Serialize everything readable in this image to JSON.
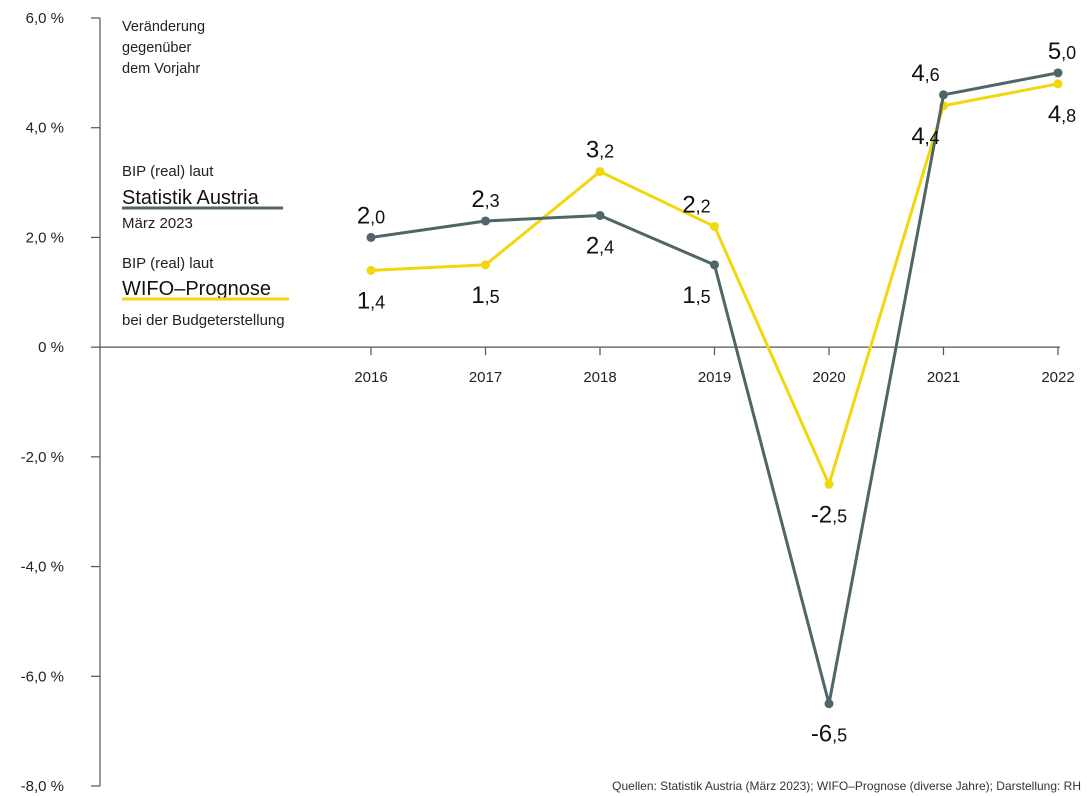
{
  "chart_data": {
    "type": "line",
    "categories": [
      "2016",
      "2017",
      "2018",
      "2019",
      "2020",
      "2021",
      "2022"
    ],
    "ylim": [
      -8.0,
      6.0
    ],
    "yticks": [
      6.0,
      4.0,
      2.0,
      0,
      -2.0,
      -4.0,
      -6.0,
      -8.0
    ],
    "ytick_labels": [
      "6,0 %",
      "4,0 %",
      "2,0 %",
      "0 %",
      "-2,0 %",
      "-4,0 %",
      "-6,0 %",
      "-8,0 %"
    ],
    "ylabel_lines": [
      "Veränderung",
      "gegenüber",
      "dem Vorjahr"
    ],
    "grid": false,
    "series": [
      {
        "key": "statistik",
        "legend_top": "BIP (real) laut",
        "name": "Statistik Austria",
        "legend_bottom": "März 2023",
        "color": "#4f6568",
        "values": [
          2.0,
          2.3,
          2.4,
          1.5,
          -6.5,
          4.6,
          5.0
        ],
        "labels": [
          {
            "int": "2",
            "dec": ",0"
          },
          {
            "int": "2",
            "dec": ",3"
          },
          {
            "int": "2",
            "dec": ",4"
          },
          {
            "int": "1",
            "dec": ",5"
          },
          {
            "int": "-6",
            "dec": ",5"
          },
          {
            "int": "4",
            "dec": ",6"
          },
          {
            "int": "5",
            "dec": ",0"
          }
        ]
      },
      {
        "key": "wifo",
        "legend_top": "BIP (real) laut",
        "name": "WIFO–Prognose",
        "legend_bottom": "bei der Budgeterstellung",
        "color": "#f2d70c",
        "values": [
          1.4,
          1.5,
          3.2,
          2.2,
          -2.5,
          4.4,
          4.8
        ],
        "labels": [
          {
            "int": "1",
            "dec": ",4"
          },
          {
            "int": "1",
            "dec": ",5"
          },
          {
            "int": "3",
            "dec": ",2"
          },
          {
            "int": "2",
            "dec": ",2"
          },
          {
            "int": "-2",
            "dec": ",5"
          },
          {
            "int": "4",
            "dec": ",4"
          },
          {
            "int": "4",
            "dec": ",8"
          }
        ]
      }
    ],
    "source": "Quellen: Statistik Austria (März 2023); WIFO–Prognose (diverse Jahre); Darstellung: RH"
  }
}
